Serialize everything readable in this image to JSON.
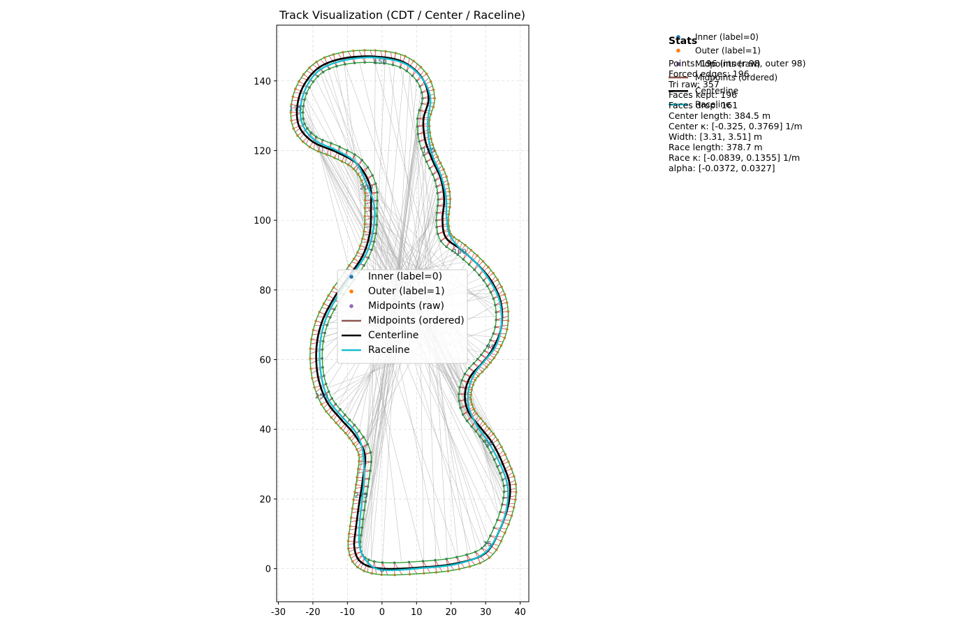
{
  "chart_data": {
    "type": "scatter",
    "title": "Track Visualization (CDT / Center / Raceline)",
    "xlabel": "",
    "ylabel": "",
    "xlim": [
      -30.5,
      42.5
    ],
    "ylim": [
      -9.5,
      156
    ],
    "xticks": [
      -30,
      -20,
      -10,
      0,
      10,
      20,
      30,
      40
    ],
    "yticks": [
      0,
      20,
      40,
      60,
      80,
      100,
      120,
      140
    ],
    "grid": true,
    "colors": {
      "inner": "#1f77b4",
      "outer": "#ff7f0e",
      "mid_raw": "#9467bd",
      "mid_ordered": "#8c564b",
      "centerline": "#000000",
      "raceline": "#17becf",
      "boundary": "#2ca02c",
      "normals": "#d62728",
      "triangulation": "#b0b0b0"
    },
    "centerline_xy": [
      [
        0,
        0
      ],
      [
        12,
        0.4
      ],
      [
        22,
        1.6
      ],
      [
        30,
        4.5
      ],
      [
        34,
        11
      ],
      [
        36.5,
        18
      ],
      [
        37,
        24
      ],
      [
        35,
        30
      ],
      [
        32,
        36
      ],
      [
        28.5,
        40.5
      ],
      [
        25,
        45
      ],
      [
        24,
        50
      ],
      [
        25.5,
        55
      ],
      [
        29,
        59
      ],
      [
        32,
        63
      ],
      [
        34.5,
        69
      ],
      [
        34.5,
        76
      ],
      [
        32,
        82
      ],
      [
        28,
        87
      ],
      [
        23,
        91.5
      ],
      [
        18.5,
        95
      ],
      [
        17.5,
        100
      ],
      [
        18,
        106
      ],
      [
        17,
        112
      ],
      [
        14.5,
        117.5
      ],
      [
        12.5,
        123
      ],
      [
        12,
        129
      ],
      [
        13.5,
        135
      ],
      [
        11.5,
        141
      ],
      [
        6,
        145.5
      ],
      [
        -2,
        147
      ],
      [
        -11,
        146.5
      ],
      [
        -18,
        144
      ],
      [
        -22.5,
        139
      ],
      [
        -24.5,
        133
      ],
      [
        -24,
        127
      ],
      [
        -20,
        122.5
      ],
      [
        -13,
        119.5
      ],
      [
        -7,
        116
      ],
      [
        -3.5,
        110
      ],
      [
        -3.2,
        103.5
      ],
      [
        -3.5,
        96.5
      ],
      [
        -5.5,
        90
      ],
      [
        -9.5,
        84
      ],
      [
        -14,
        77.5
      ],
      [
        -17.5,
        70.5
      ],
      [
        -19,
        63
      ],
      [
        -18.5,
        55
      ],
      [
        -16,
        48
      ],
      [
        -12,
        43
      ],
      [
        -8,
        38.5
      ],
      [
        -5,
        33
      ],
      [
        -5.5,
        26
      ],
      [
        -6.5,
        19.5
      ],
      [
        -7.5,
        12
      ],
      [
        -8,
        6
      ],
      [
        -6,
        1.8
      ],
      [
        0,
        0
      ]
    ],
    "raceline_xy": [
      [
        0,
        -0.4
      ],
      [
        12,
        0.2
      ],
      [
        22,
        1.4
      ],
      [
        30,
        4.7
      ],
      [
        34.2,
        11.5
      ],
      [
        36.2,
        18
      ],
      [
        36.3,
        24
      ],
      [
        34.2,
        30
      ],
      [
        31,
        36
      ],
      [
        27.5,
        41
      ],
      [
        25.2,
        46
      ],
      [
        25,
        51
      ],
      [
        26.8,
        56
      ],
      [
        30,
        60
      ],
      [
        33,
        64
      ],
      [
        34.6,
        70
      ],
      [
        34,
        77
      ],
      [
        31,
        83
      ],
      [
        27,
        88
      ],
      [
        22.5,
        92
      ],
      [
        19.5,
        96
      ],
      [
        18.7,
        101
      ],
      [
        18.5,
        107
      ],
      [
        17,
        113
      ],
      [
        14.8,
        118
      ],
      [
        13.5,
        123.5
      ],
      [
        13.3,
        129
      ],
      [
        14,
        135
      ],
      [
        11.8,
        140.5
      ],
      [
        6.5,
        145
      ],
      [
        -2,
        146.7
      ],
      [
        -10.5,
        146
      ],
      [
        -17.5,
        143.5
      ],
      [
        -21.5,
        139
      ],
      [
        -23.5,
        133
      ],
      [
        -23,
        127.5
      ],
      [
        -19.5,
        123
      ],
      [
        -13,
        120
      ],
      [
        -7.5,
        116.5
      ],
      [
        -4.5,
        110.5
      ],
      [
        -2.2,
        104
      ],
      [
        -2.6,
        97
      ],
      [
        -4.5,
        90.5
      ],
      [
        -8.5,
        84.5
      ],
      [
        -13,
        78
      ],
      [
        -16.5,
        71
      ],
      [
        -18,
        63.5
      ],
      [
        -17.6,
        55.5
      ],
      [
        -15.5,
        48.5
      ],
      [
        -11.5,
        43.5
      ],
      [
        -7.5,
        39
      ],
      [
        -5.5,
        33.5
      ],
      [
        -5.2,
        26.5
      ],
      [
        -5.8,
        19.5
      ],
      [
        -6.5,
        12.5
      ],
      [
        -6.5,
        6.5
      ],
      [
        -4.5,
        2.2
      ],
      [
        0,
        -0.4
      ]
    ],
    "index_labels": [
      {
        "text": "0",
        "x": 0,
        "y": -0.5
      },
      {
        "text": "25",
        "x": 30.5,
        "y": 7
      },
      {
        "text": "50",
        "x": 31,
        "y": 36
      },
      {
        "text": "75",
        "x": 31.5,
        "y": 63.5
      },
      {
        "text": "100",
        "x": 22.5,
        "y": 91
      },
      {
        "text": "125",
        "x": 13.5,
        "y": 120
      },
      {
        "text": "150",
        "x": -0.5,
        "y": 145.5
      },
      {
        "text": "175",
        "x": -25,
        "y": 132
      },
      {
        "text": "200",
        "x": -4.5,
        "y": 109.5
      },
      {
        "text": "250",
        "x": -17.5,
        "y": 49.5
      },
      {
        "text": "275",
        "x": -6,
        "y": 21
      }
    ],
    "legend_main": {
      "placement": "center-left",
      "entries": [
        {
          "label": "Inner (label=0)",
          "kind": "dot",
          "color": "#1f77b4"
        },
        {
          "label": "Outer (label=1)",
          "kind": "dot",
          "color": "#ff7f0e"
        },
        {
          "label": "Midpoints (raw)",
          "kind": "dot",
          "color": "#9467bd"
        },
        {
          "label": "Midpoints (ordered)",
          "kind": "line",
          "color": "#8c564b"
        },
        {
          "label": "Centerline",
          "kind": "line",
          "color": "#000000"
        },
        {
          "label": "Raceline",
          "kind": "line",
          "color": "#17becf"
        }
      ]
    },
    "legend_side": {
      "placement": "upper-right",
      "entries": [
        {
          "label": "Inner (label=0)",
          "kind": "dot",
          "color": "#1f77b4"
        },
        {
          "label": "Outer (label=1)",
          "kind": "dot",
          "color": "#ff7f0e"
        },
        {
          "label": "Midpoints (raw)",
          "kind": "dot",
          "color": "#9467bd"
        },
        {
          "label": "Midpoints (ordered)",
          "kind": "line",
          "color": "#8c564b"
        },
        {
          "label": "Centerline",
          "kind": "line",
          "color": "#000000"
        },
        {
          "label": "Raceline",
          "kind": "line",
          "color": "#17becf"
        }
      ]
    },
    "stats": {
      "title": "Stats",
      "lines": [
        "Points: 196 (inner 98, outer 98)",
        "Forced edges: 196",
        "Tri raw: 357",
        "Faces kept: 196",
        "Faces drop: 161",
        "Center length: 384.5 m",
        "Center κ: [-0.325, 0.3769] 1/m",
        "Width: [3.31, 3.51] m",
        "Race length: 378.7 m",
        "Race κ: [-0.0839, 0.1355] 1/m",
        "alpha: [-0.0372, 0.0327]"
      ]
    }
  }
}
